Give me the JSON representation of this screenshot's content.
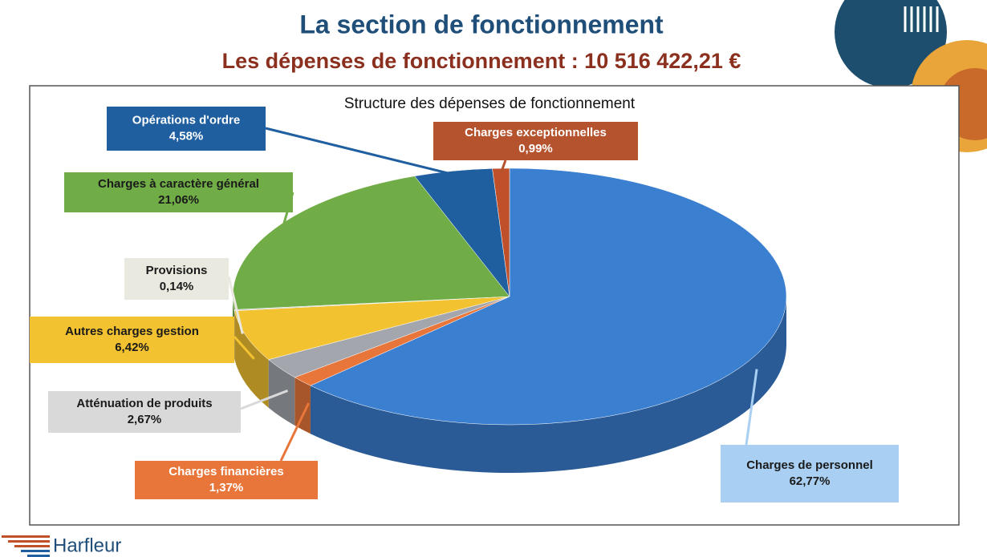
{
  "slide": {
    "title": "La section de fonctionnement",
    "subtitle": "Les dépenses de fonctionnement : 10 516 422,21 €",
    "logo": "Harfleur"
  },
  "chart_data": {
    "type": "pie",
    "title": "Structure des dépenses de fonctionnement",
    "categories": [
      "Charges de personnel",
      "Charges financières",
      "Atténuation de produits",
      "Autres charges gestion",
      "Provisions",
      "Charges à caractère général",
      "Opérations d'ordre",
      "Charges exceptionnelles"
    ],
    "values": [
      62.77,
      1.37,
      2.67,
      6.42,
      0.14,
      21.06,
      4.58,
      0.99
    ],
    "value_labels": [
      "62,77%",
      "1,37%",
      "2,67%",
      "6,42%",
      "0,14%",
      "21,06%",
      "4,58%",
      "0,99%"
    ],
    "colors": [
      "#3b7fd1",
      "#e8763a",
      "#a3a6ad",
      "#f2c230",
      "#c9c9c9",
      "#70ad47",
      "#1f5fa0",
      "#c0502a"
    ]
  }
}
